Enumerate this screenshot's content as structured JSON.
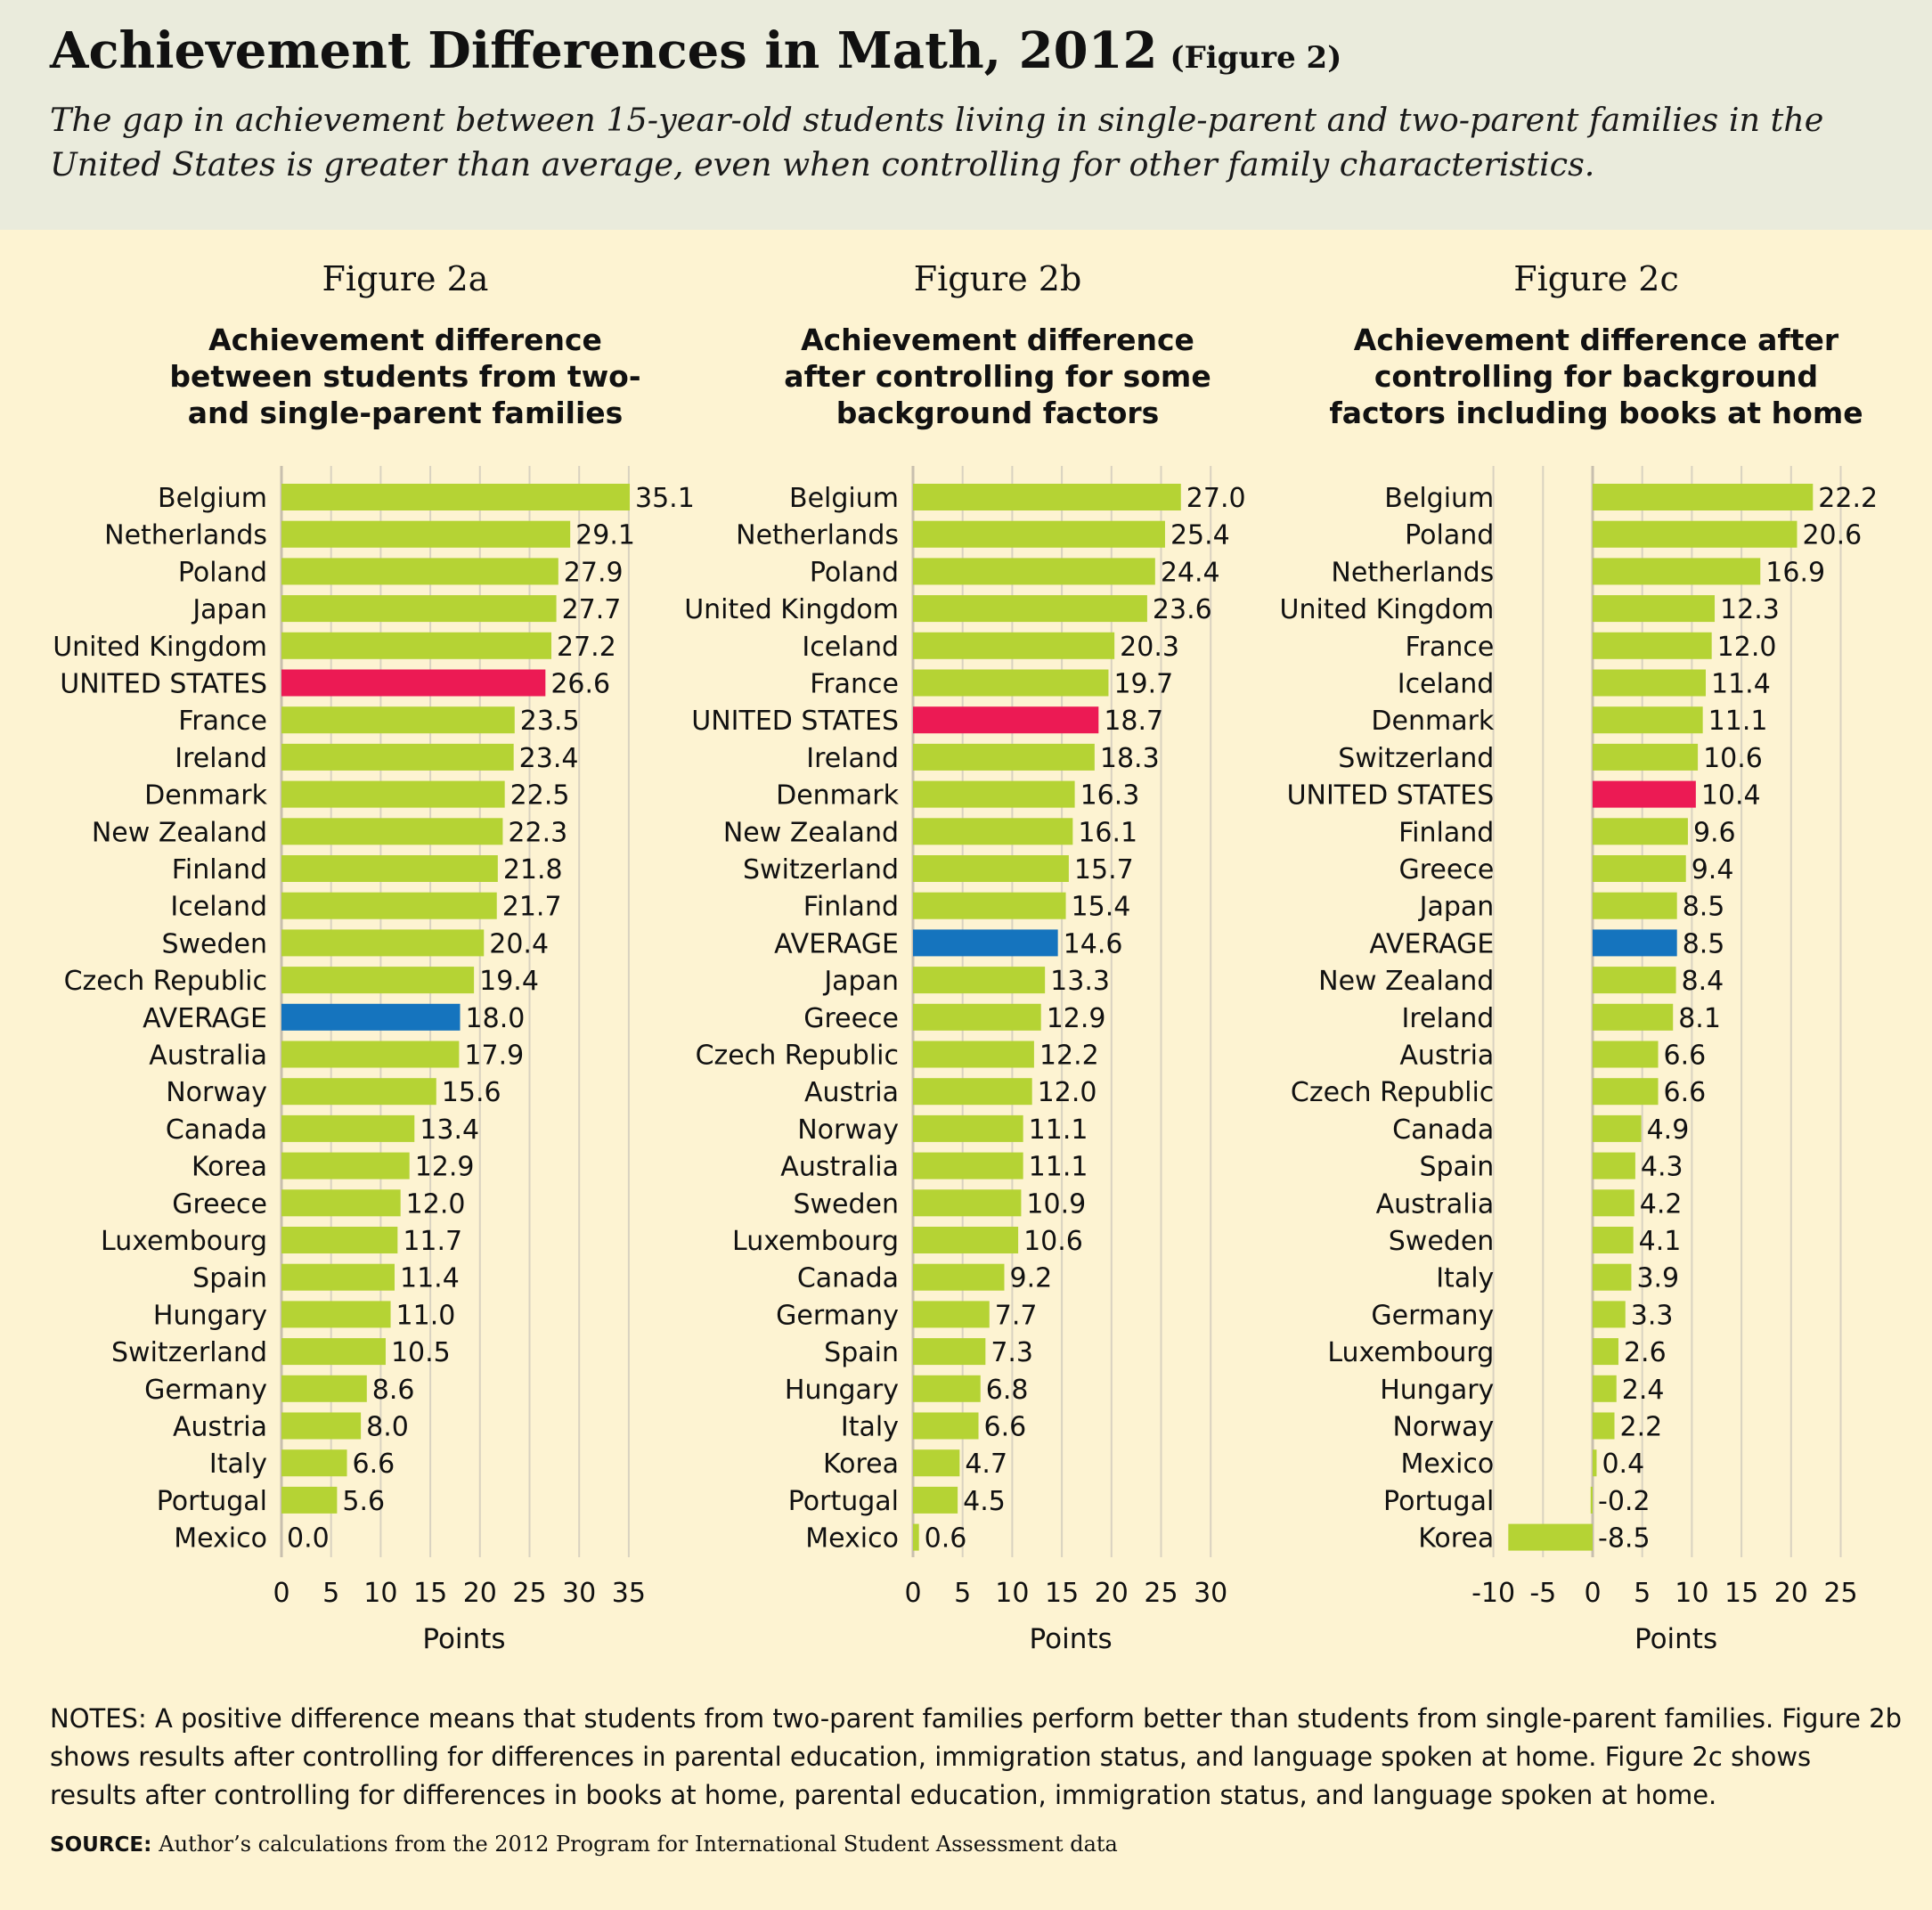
{
  "header": {
    "title": "Achievement Differences in Math, 2012",
    "figure_label": "(Figure 2)",
    "subtitle": "The gap in achievement between 15-year-old students living in single-parent and two-parent families in the United States is greater than average, even when controlling for other family characteristics."
  },
  "colors": {
    "bar": "#b5d334",
    "us_bar": "#ec1a54",
    "average_bar": "#1574be",
    "background": "#fdf3d2",
    "header_bg": "#eaebdc",
    "grid": "#d9d2c0"
  },
  "chart_data": [
    {
      "type": "bar",
      "orientation": "horizontal",
      "figure": "Figure 2a",
      "title": "Achievement difference between students from two- and single-parent families",
      "xlabel": "Points",
      "xlim": [
        0,
        35
      ],
      "xticks": [
        0,
        5,
        10,
        15,
        20,
        25,
        30,
        35
      ],
      "categories": [
        "Belgium",
        "Netherlands",
        "Poland",
        "Japan",
        "United Kingdom",
        "UNITED STATES",
        "France",
        "Ireland",
        "Denmark",
        "New Zealand",
        "Finland",
        "Iceland",
        "Sweden",
        "Czech Republic",
        "AVERAGE",
        "Australia",
        "Norway",
        "Canada",
        "Korea",
        "Greece",
        "Luxembourg",
        "Spain",
        "Hungary",
        "Switzerland",
        "Germany",
        "Austria",
        "Italy",
        "Portugal",
        "Mexico"
      ],
      "values": [
        35.1,
        29.1,
        27.9,
        27.7,
        27.2,
        26.6,
        23.5,
        23.4,
        22.5,
        22.3,
        21.8,
        21.7,
        20.4,
        19.4,
        18.0,
        17.9,
        15.6,
        13.4,
        12.9,
        12.0,
        11.7,
        11.4,
        11.0,
        10.5,
        8.6,
        8.0,
        6.6,
        5.6,
        0.0
      ],
      "value_labels": [
        "35.1",
        "29.1",
        "27.9",
        "27.7",
        "27.2",
        "26.6",
        "23.5",
        "23.4",
        "22.5",
        "22.3",
        "21.8",
        "21.7",
        "20.4",
        "19.4",
        "18.0",
        "17.9",
        "15.6",
        "13.4",
        "12.9",
        "12.0",
        "11.7",
        "11.4",
        "11.0",
        "10.5",
        "8.6",
        "8.0",
        "6.6",
        "5.6",
        "0.0"
      ],
      "grid": true,
      "legend": "none"
    },
    {
      "type": "bar",
      "orientation": "horizontal",
      "figure": "Figure 2b",
      "title": "Achievement difference after controlling for some background factors",
      "xlabel": "Points",
      "xlim": [
        0,
        30
      ],
      "xticks": [
        0,
        5,
        10,
        15,
        20,
        25,
        30
      ],
      "categories": [
        "Belgium",
        "Netherlands",
        "Poland",
        "United Kingdom",
        "Iceland",
        "France",
        "UNITED STATES",
        "Ireland",
        "Denmark",
        "New Zealand",
        "Switzerland",
        "Finland",
        "AVERAGE",
        "Japan",
        "Greece",
        "Czech Republic",
        "Austria",
        "Norway",
        "Australia",
        "Sweden",
        "Luxembourg",
        "Canada",
        "Germany",
        "Spain",
        "Hungary",
        "Italy",
        "Korea",
        "Portugal",
        "Mexico"
      ],
      "values": [
        27.0,
        25.4,
        24.4,
        23.6,
        20.3,
        19.7,
        18.7,
        18.3,
        16.3,
        16.1,
        15.7,
        15.4,
        14.6,
        13.3,
        12.9,
        12.2,
        12.0,
        11.1,
        11.1,
        10.9,
        10.6,
        9.2,
        7.7,
        7.3,
        6.8,
        6.6,
        4.7,
        4.5,
        0.6
      ],
      "value_labels": [
        "27.0",
        "25.4",
        "24.4",
        "23.6",
        "20.3",
        "19.7",
        "18.7",
        "18.3",
        "16.3",
        "16.1",
        "15.7",
        "15.4",
        "14.6",
        "13.3",
        "12.9",
        "12.2",
        "12.0",
        "11.1",
        "11.1",
        "10.9",
        "10.6",
        "9.2",
        "7.7",
        "7.3",
        "6.8",
        "6.6",
        "4.7",
        "4.5",
        "0.6"
      ],
      "grid": true,
      "legend": "none"
    },
    {
      "type": "bar",
      "orientation": "horizontal",
      "figure": "Figure 2c",
      "title": "Achievement difference after controlling for background factors including books at home",
      "xlabel": "Points",
      "xlim": [
        -10,
        25
      ],
      "xticks": [
        -10,
        -5,
        0,
        5,
        10,
        15,
        20,
        25
      ],
      "categories": [
        "Belgium",
        "Poland",
        "Netherlands",
        "United Kingdom",
        "France",
        "Iceland",
        "Denmark",
        "Switzerland",
        "UNITED STATES",
        "Finland",
        "Greece",
        "Japan",
        "AVERAGE",
        "New Zealand",
        "Ireland",
        "Austria",
        "Czech Republic",
        "Canada",
        "Spain",
        "Australia",
        "Sweden",
        "Italy",
        "Germany",
        "Luxembourg",
        "Hungary",
        "Norway",
        "Mexico",
        "Portugal",
        "Korea"
      ],
      "values": [
        22.2,
        20.6,
        16.9,
        12.3,
        12.0,
        11.4,
        11.1,
        10.6,
        10.4,
        9.6,
        9.4,
        8.5,
        8.5,
        8.4,
        8.1,
        6.6,
        6.6,
        4.9,
        4.3,
        4.2,
        4.1,
        3.9,
        3.3,
        2.6,
        2.4,
        2.2,
        0.4,
        -0.2,
        -8.5
      ],
      "value_labels": [
        "22.2",
        "20.6",
        "16.9",
        "12.3",
        "12.0",
        "11.4",
        "11.1",
        "10.6",
        "10.4",
        "9.6",
        "9.4",
        "8.5",
        "8.5",
        "8.4",
        "8.1",
        "6.6",
        "6.6",
        "4.9",
        "4.3",
        "4.2",
        "4.1",
        "3.9",
        "3.3",
        "2.6",
        "2.4",
        "2.2",
        "0.4",
        "-0.2",
        "-8.5"
      ],
      "grid": true,
      "legend": "none"
    }
  ],
  "notes": "NOTES: A positive difference means that students from two-parent families perform better than students from single-parent families. Figure 2b shows results after controlling for differences in parental education, immigration status, and language spoken at home. Figure 2c shows results after controlling for differences in books at home, parental education, immigration status, and language spoken at home.",
  "source": {
    "label": "SOURCE:",
    "text": "Author’s calculations from the 2012 Program for International Student Assessment data"
  }
}
